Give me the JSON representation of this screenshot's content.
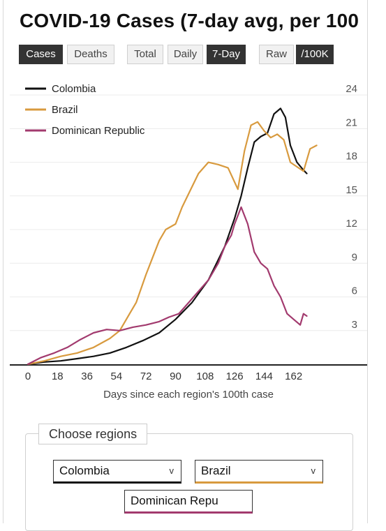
{
  "title": "COVID-19 Cases (7-day avg, per 100",
  "buttons": {
    "cases": "Cases",
    "deaths": "Deaths",
    "total": "Total",
    "daily": "Daily",
    "seven_day": "7-Day",
    "raw": "Raw",
    "per100k": "/100K"
  },
  "colors": {
    "colombia": "#111111",
    "brazil": "#d89a3e",
    "dominican": "#a23a6e",
    "active_button": "#333333"
  },
  "chart_data": {
    "type": "line",
    "xlabel": "Days since each region's 100th case",
    "ylabel": "",
    "x_ticks": [
      0,
      18,
      36,
      54,
      72,
      90,
      108,
      126,
      144,
      162
    ],
    "y_ticks": [
      3,
      6,
      9,
      12,
      15,
      18,
      21,
      24
    ],
    "xlim": [
      0,
      180
    ],
    "ylim": [
      0,
      25
    ],
    "grid": true,
    "legend": "top-left",
    "series": [
      {
        "name": "Colombia",
        "color": "#111111",
        "x": [
          0,
          10,
          20,
          30,
          40,
          50,
          60,
          70,
          80,
          90,
          100,
          110,
          120,
          126,
          130,
          134,
          138,
          142,
          146,
          150,
          154,
          157,
          160,
          164,
          168,
          170
        ],
        "y": [
          0,
          0.2,
          0.3,
          0.5,
          0.7,
          1.0,
          1.5,
          2.1,
          2.8,
          4.0,
          5.5,
          7.5,
          10.5,
          13.0,
          15.0,
          17.5,
          19.8,
          20.3,
          20.6,
          22.3,
          22.8,
          22.0,
          19.5,
          18.0,
          17.3,
          17.0
        ]
      },
      {
        "name": "Brazil",
        "color": "#d89a3e",
        "x": [
          0,
          10,
          20,
          30,
          40,
          50,
          56,
          62,
          66,
          72,
          76,
          80,
          84,
          90,
          94,
          100,
          104,
          110,
          116,
          122,
          128,
          132,
          136,
          140,
          144,
          148,
          152,
          156,
          160,
          164,
          168,
          172,
          176
        ],
        "y": [
          0,
          0.3,
          0.7,
          1.0,
          1.5,
          2.3,
          3.0,
          4.5,
          5.5,
          8.0,
          9.5,
          11.0,
          12.0,
          12.5,
          14.0,
          15.8,
          17.0,
          18.0,
          17.8,
          17.5,
          15.6,
          19.0,
          21.3,
          21.6,
          20.8,
          20.2,
          20.5,
          20.0,
          18.0,
          17.6,
          17.2,
          19.2,
          19.5
        ]
      },
      {
        "name": "Dominican Republic",
        "color": "#a23a6e",
        "x": [
          0,
          8,
          16,
          24,
          32,
          40,
          48,
          56,
          64,
          72,
          80,
          86,
          92,
          98,
          104,
          110,
          116,
          120,
          124,
          126,
          130,
          134,
          138,
          142,
          146,
          150,
          154,
          158,
          162,
          166,
          168,
          170
        ],
        "y": [
          0,
          0.6,
          1.0,
          1.5,
          2.2,
          2.8,
          3.1,
          3.0,
          3.3,
          3.5,
          3.8,
          4.2,
          4.5,
          5.5,
          6.5,
          7.5,
          9.0,
          10.5,
          11.5,
          12.5,
          14.0,
          12.5,
          10.0,
          9.0,
          8.5,
          7.0,
          6.0,
          4.5,
          4.0,
          3.5,
          4.5,
          4.3
        ]
      }
    ]
  },
  "regions": {
    "legend": "Choose regions",
    "selects": [
      {
        "label": "Colombia",
        "color": "#111111",
        "chevron": "v"
      },
      {
        "label": "Brazil",
        "color": "#d89a3e",
        "chevron": "v"
      },
      {
        "label": "Dominican Repu",
        "color": "#a23a6e",
        "chevron": ""
      }
    ]
  }
}
